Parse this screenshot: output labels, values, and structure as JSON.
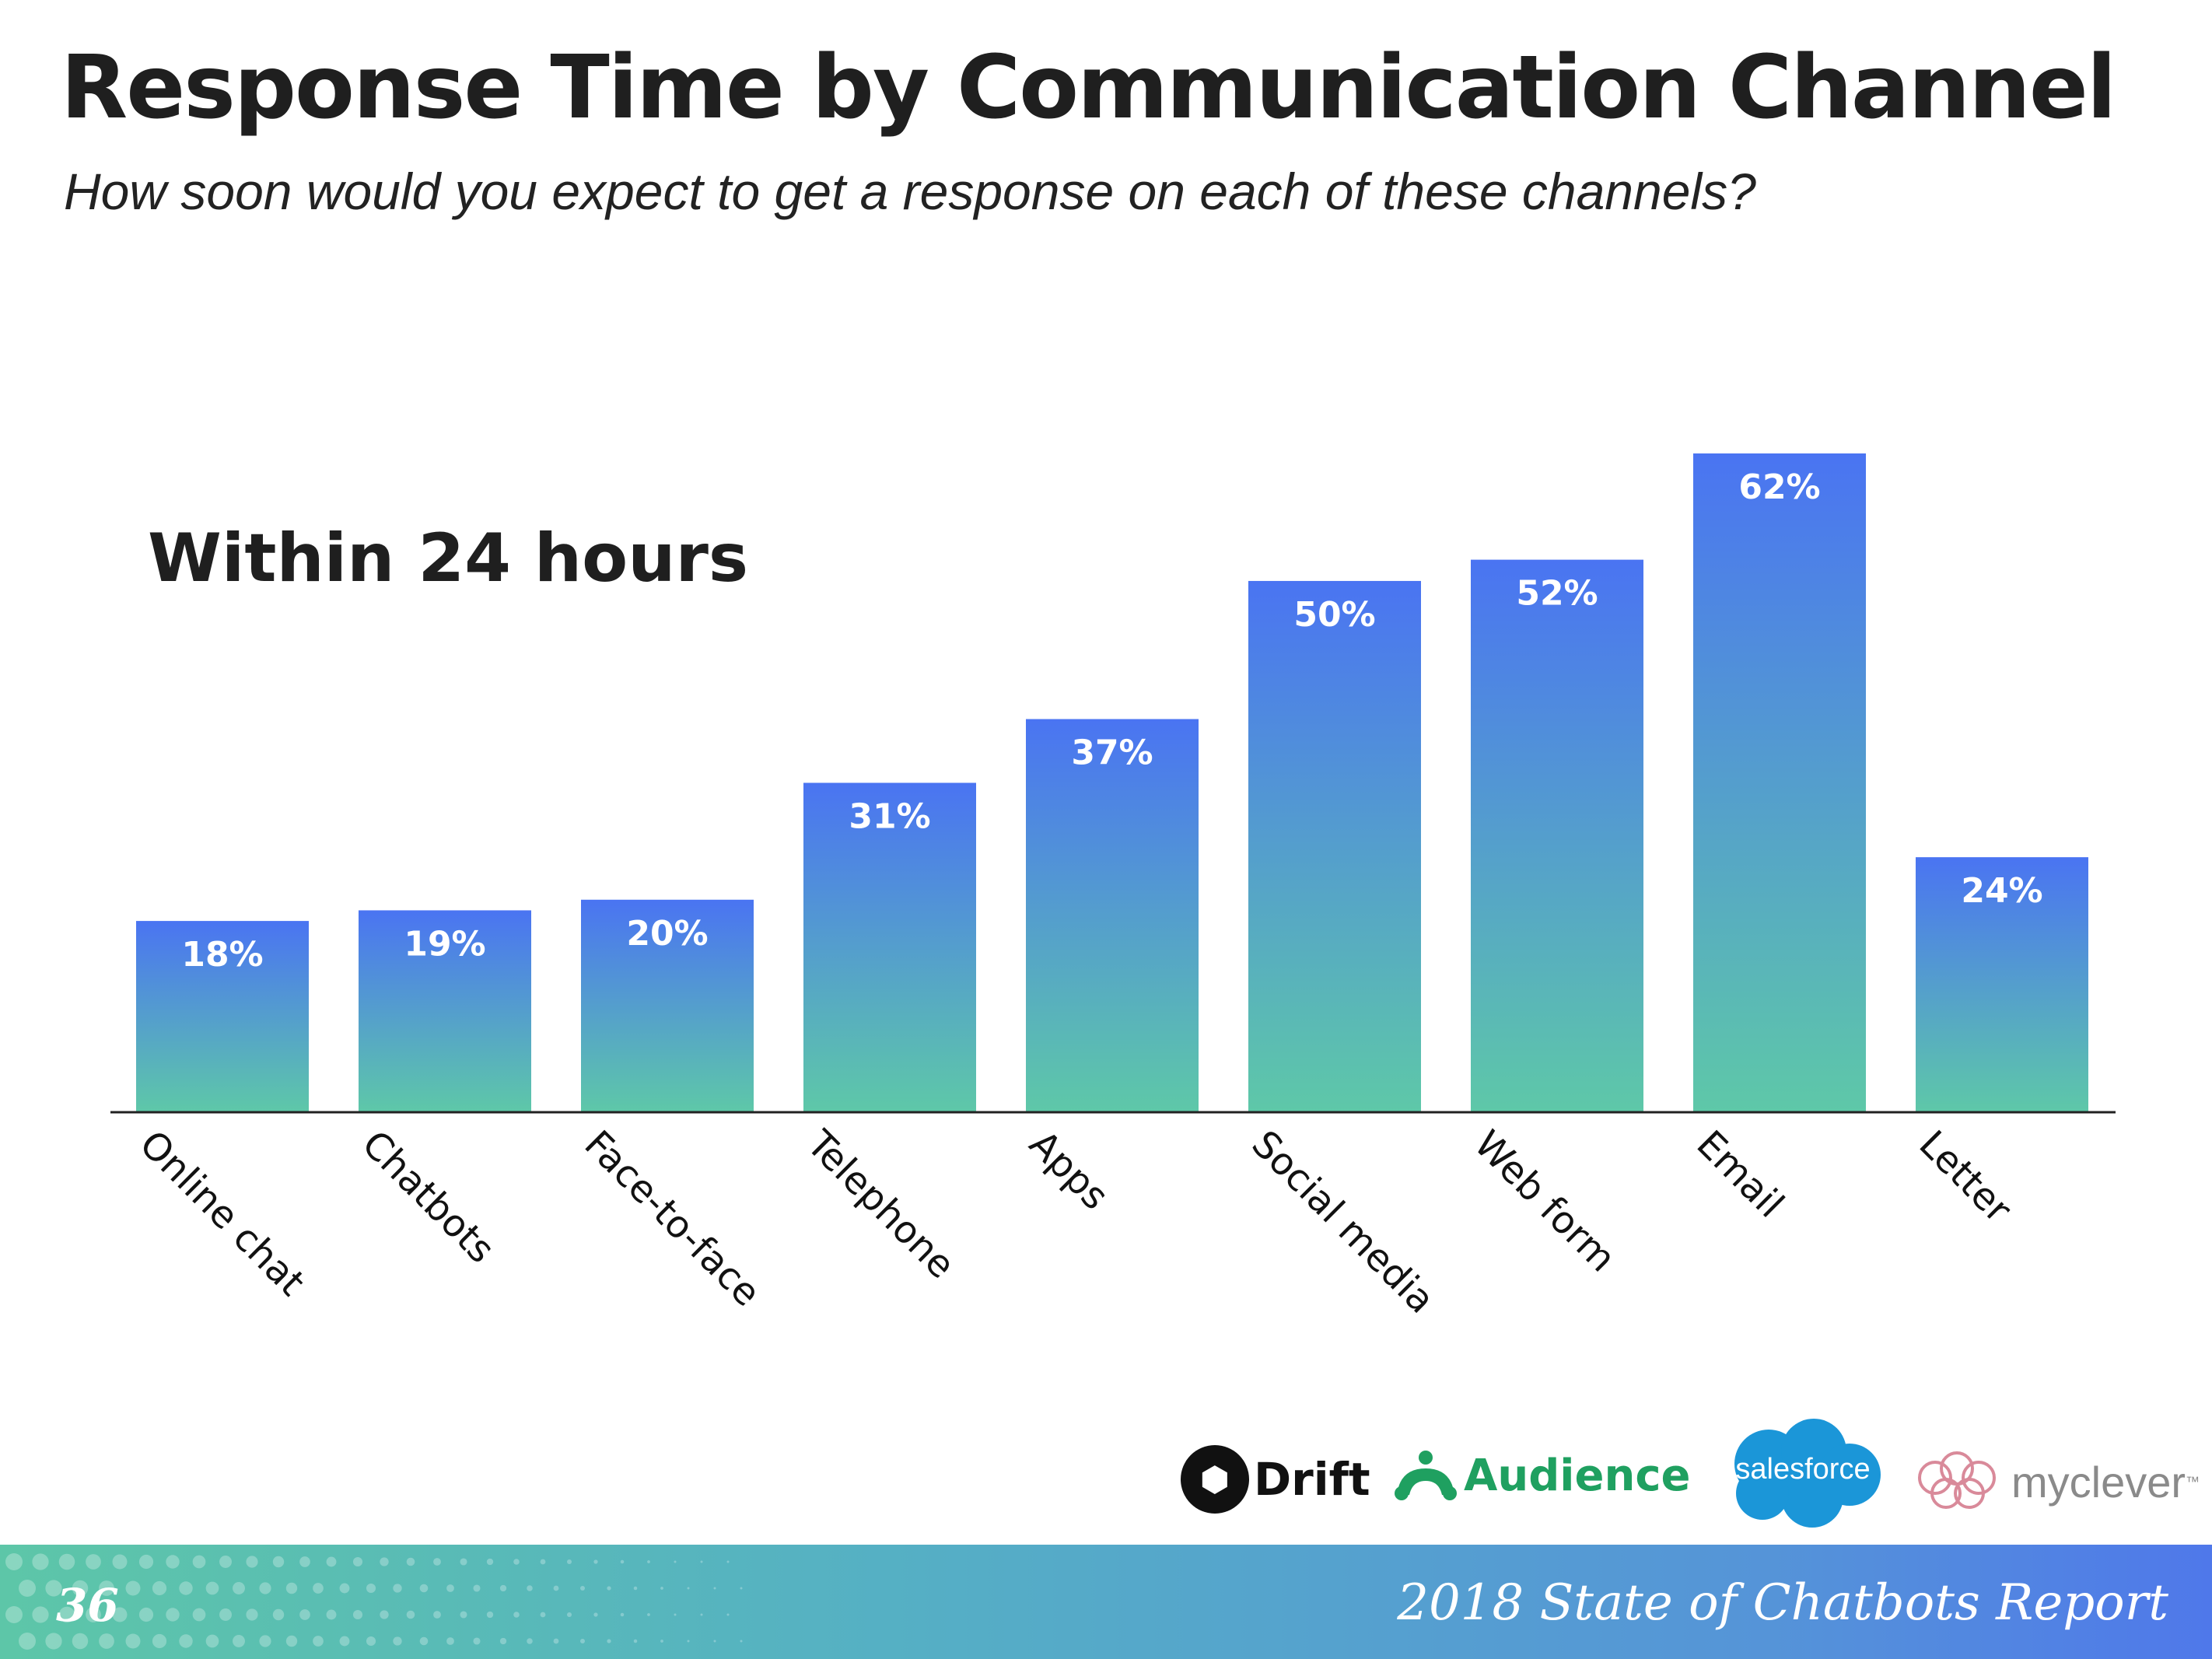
{
  "title": "Response Time by Communication Channel",
  "subtitle": "How soon would you expect to get a response on each of these channels?",
  "chart_data": {
    "type": "bar",
    "label": "Within 24 hours",
    "categories": [
      "Online chat",
      "Chatbots",
      "Face-to-face",
      "Telephone",
      "Apps",
      "Social media",
      "Web form",
      "Email",
      "Letter"
    ],
    "values": [
      18,
      19,
      20,
      31,
      37,
      50,
      52,
      62,
      24
    ],
    "value_labels": [
      "18%",
      "19%",
      "20%",
      "31%",
      "37%",
      "50%",
      "52%",
      "62%",
      "24%"
    ],
    "ylim": [
      0,
      62
    ],
    "grid": false,
    "colors": {
      "bar_top": "#4a74f2",
      "bar_bottom": "#5ec8a8",
      "axis": "#222222",
      "value_text": "#ffffff"
    }
  },
  "logos": {
    "drift": "Drift",
    "audience": "Audience",
    "salesforce": "salesforce",
    "myclever": "myclever",
    "myclever_tm": "™"
  },
  "footer": {
    "page_number": "36",
    "report_title": "2018 State of Chatbots Report"
  }
}
